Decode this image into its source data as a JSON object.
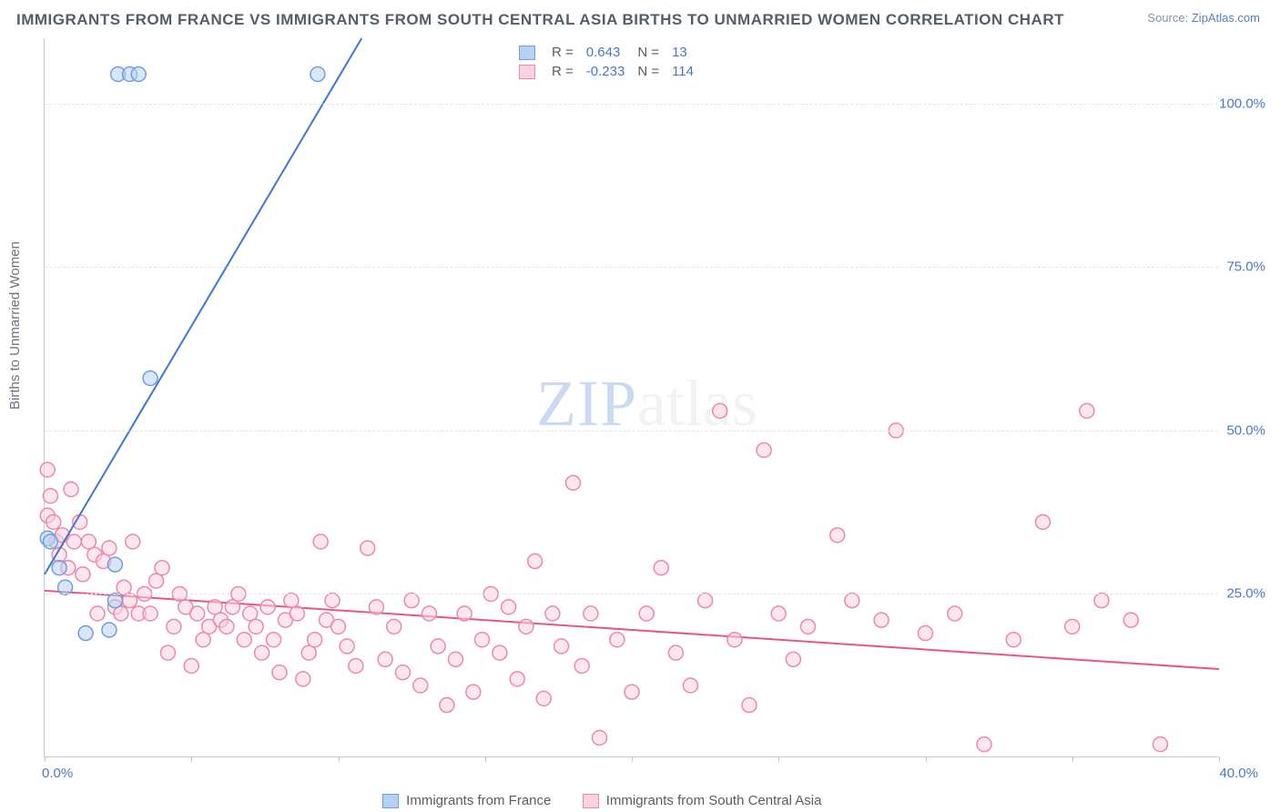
{
  "title": "IMMIGRANTS FROM FRANCE VS IMMIGRANTS FROM SOUTH CENTRAL ASIA BIRTHS TO UNMARRIED WOMEN CORRELATION CHART",
  "source": {
    "label": "Source:",
    "text": "ZipAtlas.com"
  },
  "ylabel": "Births to Unmarried Women",
  "watermark_a": "ZIP",
  "watermark_b": "atlas",
  "chart": {
    "type": "scatter",
    "background_color": "#ffffff",
    "grid_color": "#dfe4ea",
    "axis_color": "#c3cad4",
    "tick_color": "#4a78c4",
    "label_color": "#6b7580",
    "title_color": "#555d66",
    "title_fontsize": 17,
    "label_fontsize": 15,
    "tick_fontsize": 15,
    "xlim": [
      0,
      40
    ],
    "ylim": [
      0,
      110
    ],
    "yticks": [
      25,
      50,
      75,
      100
    ],
    "ytick_labels": [
      "25.0%",
      "50.0%",
      "75.0%",
      "100.0%"
    ],
    "xtick_positions": [
      0,
      5,
      10,
      15,
      20,
      25,
      30,
      35,
      40
    ],
    "xtick_labels": {
      "0": "0.0%",
      "40": "40.0%"
    },
    "marker_radius": 8,
    "marker_stroke_width": 1.5,
    "line_width": 2
  },
  "series": [
    {
      "id": "france",
      "label": "Immigrants from France",
      "fill": "#b9d1f0",
      "stroke": "#6c9fdd",
      "line_color": "#3d77d6",
      "line": {
        "x1": 0,
        "y1": 28,
        "x2": 10.8,
        "y2": 110
      },
      "R": "0.643",
      "N": "13",
      "points": [
        [
          0.1,
          33.5
        ],
        [
          0.2,
          33.0
        ],
        [
          0.5,
          29.0
        ],
        [
          0.7,
          26.0
        ],
        [
          1.4,
          19.0
        ],
        [
          2.2,
          19.5
        ],
        [
          2.4,
          24.0
        ],
        [
          2.4,
          29.5
        ],
        [
          3.6,
          58.0
        ],
        [
          2.5,
          104.5
        ],
        [
          2.9,
          104.5
        ],
        [
          3.2,
          104.5
        ],
        [
          9.3,
          104.5
        ]
      ]
    },
    {
      "id": "sca",
      "label": "Immigrants from South Central Asia",
      "fill": "#fbd2df",
      "stroke": "#ed88a9",
      "line_color": "#e8558a",
      "line": {
        "x1": 0,
        "y1": 25.5,
        "x2": 40,
        "y2": 13.5
      },
      "R": "-0.233",
      "N": "114",
      "points": [
        [
          0.1,
          44
        ],
        [
          0.1,
          37
        ],
        [
          0.2,
          40
        ],
        [
          0.3,
          36
        ],
        [
          0.4,
          33
        ],
        [
          0.5,
          31
        ],
        [
          0.6,
          34
        ],
        [
          0.8,
          29
        ],
        [
          0.9,
          41
        ],
        [
          1.0,
          33
        ],
        [
          1.2,
          36
        ],
        [
          1.3,
          28
        ],
        [
          1.5,
          33
        ],
        [
          1.7,
          31
        ],
        [
          1.8,
          22
        ],
        [
          2.0,
          30
        ],
        [
          2.2,
          32
        ],
        [
          2.4,
          23
        ],
        [
          2.6,
          22
        ],
        [
          2.7,
          26
        ],
        [
          2.9,
          24
        ],
        [
          3.0,
          33
        ],
        [
          3.2,
          22
        ],
        [
          3.4,
          25
        ],
        [
          3.6,
          22
        ],
        [
          3.8,
          27
        ],
        [
          4.0,
          29
        ],
        [
          4.2,
          16
        ],
        [
          4.4,
          20
        ],
        [
          4.6,
          25
        ],
        [
          4.8,
          23
        ],
        [
          5.0,
          14
        ],
        [
          5.2,
          22
        ],
        [
          5.4,
          18
        ],
        [
          5.6,
          20
        ],
        [
          5.8,
          23
        ],
        [
          6.0,
          21
        ],
        [
          6.2,
          20
        ],
        [
          6.4,
          23
        ],
        [
          6.6,
          25
        ],
        [
          6.8,
          18
        ],
        [
          7.0,
          22
        ],
        [
          7.2,
          20
        ],
        [
          7.4,
          16
        ],
        [
          7.6,
          23
        ],
        [
          7.8,
          18
        ],
        [
          8.0,
          13
        ],
        [
          8.2,
          21
        ],
        [
          8.4,
          24
        ],
        [
          8.6,
          22
        ],
        [
          8.8,
          12
        ],
        [
          9.0,
          16
        ],
        [
          9.2,
          18
        ],
        [
          9.4,
          33
        ],
        [
          9.6,
          21
        ],
        [
          9.8,
          24
        ],
        [
          10.0,
          20
        ],
        [
          10.3,
          17
        ],
        [
          10.6,
          14
        ],
        [
          11.0,
          32
        ],
        [
          11.3,
          23
        ],
        [
          11.6,
          15
        ],
        [
          11.9,
          20
        ],
        [
          12.2,
          13
        ],
        [
          12.5,
          24
        ],
        [
          12.8,
          11
        ],
        [
          13.1,
          22
        ],
        [
          13.4,
          17
        ],
        [
          13.7,
          8
        ],
        [
          14.0,
          15
        ],
        [
          14.3,
          22
        ],
        [
          14.6,
          10
        ],
        [
          14.9,
          18
        ],
        [
          15.2,
          25
        ],
        [
          15.5,
          16
        ],
        [
          15.8,
          23
        ],
        [
          16.1,
          12
        ],
        [
          16.4,
          20
        ],
        [
          16.7,
          30
        ],
        [
          17.0,
          9
        ],
        [
          17.3,
          22
        ],
        [
          17.6,
          17
        ],
        [
          18.0,
          42
        ],
        [
          18.3,
          14
        ],
        [
          18.6,
          22
        ],
        [
          18.9,
          3
        ],
        [
          19.5,
          18
        ],
        [
          20.0,
          10
        ],
        [
          20.5,
          22
        ],
        [
          21.0,
          29
        ],
        [
          21.5,
          16
        ],
        [
          22.0,
          11
        ],
        [
          22.5,
          24
        ],
        [
          23.0,
          53
        ],
        [
          23.5,
          18
        ],
        [
          24.0,
          8
        ],
        [
          24.5,
          47
        ],
        [
          25.0,
          22
        ],
        [
          25.5,
          15
        ],
        [
          26.0,
          20
        ],
        [
          27.0,
          34
        ],
        [
          27.5,
          24
        ],
        [
          28.5,
          21
        ],
        [
          29.0,
          50
        ],
        [
          30.0,
          19
        ],
        [
          31.0,
          22
        ],
        [
          32.0,
          2
        ],
        [
          33.0,
          18
        ],
        [
          34.0,
          36
        ],
        [
          35.0,
          20
        ],
        [
          35.5,
          53
        ],
        [
          36.0,
          24
        ],
        [
          37.0,
          21
        ],
        [
          38.0,
          2
        ]
      ]
    }
  ],
  "legend": {
    "R_label": "R =",
    "N_label": "N ="
  }
}
